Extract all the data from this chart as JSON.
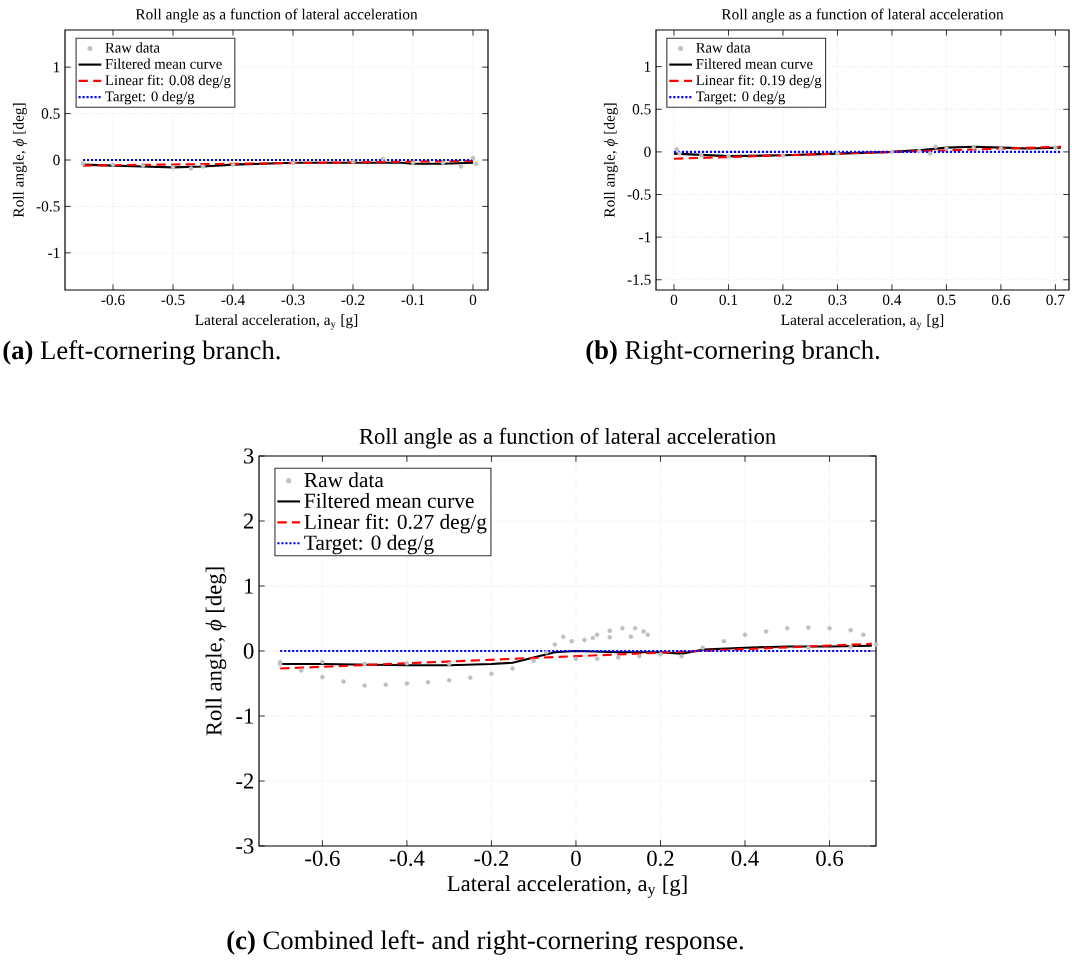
{
  "chart_data": [
    {
      "type": "line",
      "title": "Roll angle as a function of lateral acceleration",
      "xlabel": "Lateral acceleration, a$_{y}$ [g]",
      "ylabel": "Roll angle, *ϕ* [deg]",
      "xlim": [
        -0.68,
        0.025
      ],
      "ylim": [
        -1.4,
        1.4
      ],
      "xticks": [
        -0.6,
        -0.5,
        -0.4,
        -0.3,
        -0.2,
        -0.1,
        0
      ],
      "yticks": [
        -1,
        -0.5,
        0,
        0.5,
        1
      ],
      "grid": true,
      "legend": "top left",
      "annotations": [
        "**(a)** Left-cornering branch."
      ],
      "series": [
        {
          "name": "Raw data",
          "type": "scatter",
          "marker": "circle",
          "color": "#bfbfbf",
          "x": [
            -0.65,
            -0.6,
            -0.55,
            -0.5,
            -0.47,
            -0.45,
            -0.4,
            -0.3,
            -0.2,
            -0.15,
            -0.1,
            -0.05,
            -0.02,
            0,
            0.005
          ],
          "values": [
            -0.04,
            -0.05,
            -0.06,
            -0.08,
            -0.09,
            -0.07,
            -0.05,
            -0.03,
            -0.02,
            0.01,
            -0.03,
            -0.03,
            -0.07,
            0.02,
            -0.04
          ]
        },
        {
          "name": "Filtered mean curve",
          "color": "#000000",
          "line_style": "solid",
          "x": [
            -0.65,
            -0.6,
            -0.55,
            -0.5,
            -0.45,
            -0.4,
            -0.3,
            -0.2,
            -0.12,
            -0.1,
            -0.05,
            0
          ],
          "values": [
            -0.05,
            -0.06,
            -0.07,
            -0.08,
            -0.07,
            -0.05,
            -0.03,
            -0.03,
            -0.03,
            -0.04,
            -0.04,
            -0.03
          ]
        },
        {
          "name": "Linear fit: 0.08 deg/g",
          "color": "#ff0000",
          "line_style": "dashed",
          "x": [
            -0.65,
            0
          ],
          "values": [
            -0.06,
            -0.01
          ]
        },
        {
          "name": "Target: 0 deg/g",
          "color": "#0000ff",
          "line_style": "dotted",
          "x": [
            -0.65,
            0
          ],
          "values": [
            0,
            0
          ]
        }
      ]
    },
    {
      "type": "line",
      "title": "Roll angle as a function of lateral acceleration",
      "xlabel": "Lateral acceleration, a$_{y}$ [g]",
      "ylabel": "Roll angle, *ϕ* [deg]",
      "xlim": [
        -0.033,
        0.725
      ],
      "ylim": [
        -1.62,
        1.43
      ],
      "xticks": [
        0,
        0.1,
        0.2,
        0.3,
        0.4,
        0.5,
        0.6,
        0.7
      ],
      "yticks": [
        -1.5,
        -1,
        -0.5,
        0,
        0.5,
        1
      ],
      "grid": true,
      "legend": "top left",
      "annotations": [
        "**(b)** Right-cornering branch."
      ],
      "series": [
        {
          "name": "Raw data",
          "type": "scatter",
          "marker": "circle",
          "color": "#bfbfbf",
          "x": [
            0.005,
            0.01,
            0.05,
            0.1,
            0.2,
            0.3,
            0.4,
            0.45,
            0.48,
            0.47,
            0.5,
            0.55,
            0.6,
            0.7
          ],
          "values": [
            0.03,
            -0.02,
            -0.04,
            -0.05,
            -0.04,
            -0.02,
            0,
            0.01,
            0.06,
            -0.02,
            0.04,
            0.05,
            0.04,
            0.05
          ]
        },
        {
          "name": "Filtered mean curve",
          "color": "#000000",
          "line_style": "solid",
          "x": [
            0,
            0.1,
            0.2,
            0.3,
            0.4,
            0.45,
            0.5,
            0.55,
            0.6,
            0.65,
            0.71
          ],
          "values": [
            -0.02,
            -0.05,
            -0.04,
            -0.02,
            0,
            0.02,
            0.05,
            0.06,
            0.05,
            0.04,
            0.05
          ]
        },
        {
          "name": "Linear fit: 0.19 deg/g",
          "color": "#ff0000",
          "line_style": "dashed",
          "x": [
            0,
            0.71
          ],
          "values": [
            -0.08,
            0.06
          ]
        },
        {
          "name": "Target: 0 deg/g",
          "color": "#0000ff",
          "line_style": "dotted",
          "x": [
            0,
            0.71
          ],
          "values": [
            0,
            0
          ]
        }
      ]
    },
    {
      "type": "line",
      "title": "Roll angle as a function of lateral acceleration",
      "xlabel": "Lateral acceleration, a$_{y}$ [g]",
      "ylabel": "Roll angle, *ϕ* [deg]",
      "xlim": [
        -0.75,
        0.71
      ],
      "ylim": [
        -3,
        3
      ],
      "xticks": [
        -0.6,
        -0.4,
        -0.2,
        0,
        0.2,
        0.4,
        0.6
      ],
      "yticks": [
        -3,
        -2,
        -1,
        0,
        1,
        2,
        3
      ],
      "grid": true,
      "legend": "top left",
      "annotations": [
        "**(c)** Combined left- and right-cornering response."
      ],
      "series": [
        {
          "name": "Raw data",
          "type": "scatter",
          "marker": "circle",
          "color": "#bfbfbf",
          "x": [
            -0.7,
            -0.65,
            -0.6,
            -0.55,
            -0.5,
            -0.45,
            -0.4,
            -0.35,
            -0.3,
            -0.25,
            -0.2,
            -0.15,
            -0.1,
            -0.07,
            -0.05,
            -0.03,
            -0.01,
            0.02,
            0.05,
            0.08,
            0.11,
            0.14,
            0.16,
            0.17,
            0.13,
            0.08,
            0.04,
            0.0,
            0.05,
            0.1,
            0.15,
            0.2,
            0.25,
            0.3,
            0.35,
            0.4,
            0.45,
            0.5,
            0.55,
            0.6,
            0.65,
            0.68,
            0.71,
            0.65,
            0.55,
            -0.7,
            -0.6,
            -0.5,
            -0.4,
            -0.3
          ],
          "values": [
            -0.17,
            -0.3,
            -0.4,
            -0.47,
            -0.53,
            -0.52,
            -0.5,
            -0.48,
            -0.45,
            -0.41,
            -0.35,
            -0.27,
            -0.15,
            -0.02,
            0.1,
            0.22,
            0.15,
            0.17,
            0.25,
            0.31,
            0.35,
            0.35,
            0.3,
            0.25,
            0.22,
            0.21,
            0.2,
            -0.12,
            -0.12,
            -0.1,
            -0.08,
            -0.05,
            -0.08,
            0.05,
            0.15,
            0.25,
            0.3,
            0.35,
            0.36,
            0.35,
            0.32,
            0.25,
            0.1,
            0.06,
            0.05,
            -0.2,
            -0.17,
            -0.2,
            -0.19,
            -0.2
          ]
        },
        {
          "name": "Filtered mean curve",
          "color": "#000000",
          "line_style": "solid",
          "x": [
            -0.7,
            -0.6,
            -0.5,
            -0.4,
            -0.3,
            -0.2,
            -0.15,
            -0.1,
            -0.05,
            0,
            0.1,
            0.2,
            0.25,
            0.3,
            0.4,
            0.5,
            0.6,
            0.7
          ],
          "values": [
            -0.2,
            -0.2,
            -0.21,
            -0.22,
            -0.22,
            -0.2,
            -0.18,
            -0.1,
            -0.02,
            0,
            -0.02,
            -0.02,
            -0.04,
            0.02,
            0.05,
            0.07,
            0.07,
            0.08
          ]
        },
        {
          "name": "Linear fit: 0.27 deg/g",
          "color": "#ff0000",
          "line_style": "dashed",
          "x": [
            -0.7,
            0.7
          ],
          "values": [
            -0.27,
            0.11
          ]
        },
        {
          "name": "Target: 0 deg/g",
          "color": "#0000ff",
          "line_style": "dotted",
          "x": [
            -0.7,
            0.7
          ],
          "values": [
            0,
            0
          ]
        }
      ]
    }
  ]
}
